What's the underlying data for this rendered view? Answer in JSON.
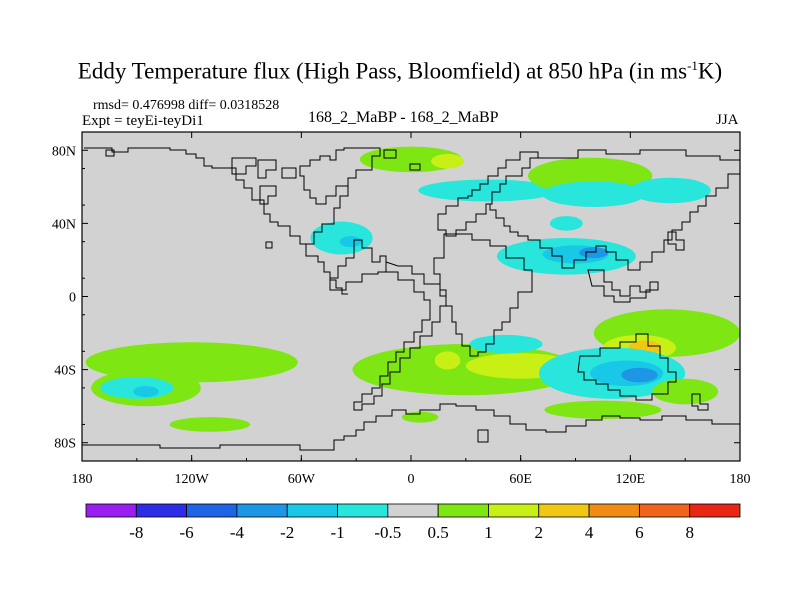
{
  "header": {
    "title_main": "Eddy Temperature flux (High Pass, Bloomfield) at 850 hPa (in ms",
    "title_sup": "-1",
    "title_tail": "K)",
    "stats": "rmsd= 0.476998 diff= 0.0318528",
    "expt": "Expt = teyEi-teyDi1",
    "center_label": "168_2_MaBP - 168_2_MaBP",
    "season": "JJA"
  },
  "chart_data": {
    "type": "contour-map",
    "title": "Eddy Temperature flux (High Pass, Bloomfield) at 850 hPa (in ms-1K)",
    "x_axis": {
      "range": [
        -180,
        180
      ],
      "ticks": [
        -180,
        -120,
        -60,
        0,
        60,
        120,
        180
      ],
      "tick_labels": [
        "180",
        "120W",
        "60W",
        "0",
        "60E",
        "120E",
        "180"
      ]
    },
    "y_axis": {
      "range": [
        -90,
        90
      ],
      "ticks": [
        80,
        40,
        0,
        -40,
        -80
      ],
      "tick_labels": [
        "80N",
        "40N",
        "0",
        "40S",
        "80S"
      ]
    },
    "colorbar": {
      "labels": [
        "-8",
        "-6",
        "-4",
        "-2",
        "-1",
        "-0.5",
        "0.5",
        "1",
        "2",
        "4",
        "6",
        "8"
      ],
      "colors": [
        "#9b1ef0",
        "#2d2de6",
        "#1e64e6",
        "#1e96e6",
        "#19c8e6",
        "#28e6dc",
        "#d2d2d2",
        "#7ee612",
        "#c8f014",
        "#f0c814",
        "#f08c14",
        "#f0641e",
        "#e62814"
      ]
    },
    "regions": [
      {
        "lon": 0,
        "lat": 75,
        "rlon": 28,
        "rlat": 7,
        "color": "#7ee612"
      },
      {
        "lon": 20,
        "lat": 74,
        "rlon": 9,
        "rlat": 4,
        "color": "#c8f014"
      },
      {
        "lon": 42,
        "lat": 58,
        "rlon": 38,
        "rlat": 6,
        "color": "#28e6dc"
      },
      {
        "lon": 98,
        "lat": 66,
        "rlon": 34,
        "rlat": 10,
        "color": "#7ee612"
      },
      {
        "lon": 100,
        "lat": 56,
        "rlon": 28,
        "rlat": 7,
        "color": "#28e6dc"
      },
      {
        "lon": 142,
        "lat": 58,
        "rlon": 22,
        "rlat": 7,
        "color": "#28e6dc"
      },
      {
        "lon": 85,
        "lat": 40,
        "rlon": 9,
        "rlat": 4,
        "color": "#28e6dc"
      },
      {
        "lon": -38,
        "lat": 32,
        "rlon": 17,
        "rlat": 9,
        "color": "#28e6dc"
      },
      {
        "lon": -33,
        "lat": 30,
        "rlon": 6,
        "rlat": 3,
        "color": "#19c8e6"
      },
      {
        "lon": 85,
        "lat": 22,
        "rlon": 38,
        "rlat": 10,
        "color": "#28e6dc"
      },
      {
        "lon": 90,
        "lat": 23,
        "rlon": 18,
        "rlat": 5,
        "color": "#19c8e6"
      },
      {
        "lon": 100,
        "lat": 24,
        "rlon": 8,
        "rlat": 3,
        "color": "#1e96e6"
      },
      {
        "lon": 140,
        "lat": -20,
        "rlon": 40,
        "rlat": 13,
        "color": "#7ee612"
      },
      {
        "lon": 125,
        "lat": -28,
        "rlon": 20,
        "rlat": 7,
        "color": "#c8f014"
      },
      {
        "lon": 128,
        "lat": -28,
        "rlon": 9,
        "rlat": 4,
        "color": "#f0c814"
      },
      {
        "lon": -120,
        "lat": -36,
        "rlon": 58,
        "rlat": 11,
        "color": "#7ee612"
      },
      {
        "lon": -145,
        "lat": -50,
        "rlon": 30,
        "rlat": 10,
        "color": "#7ee612"
      },
      {
        "lon": -150,
        "lat": -50,
        "rlon": 20,
        "rlat": 6,
        "color": "#28e6dc"
      },
      {
        "lon": -145,
        "lat": -52,
        "rlon": 7,
        "rlat": 3,
        "color": "#19c8e6"
      },
      {
        "lon": 30,
        "lat": -40,
        "rlon": 62,
        "rlat": 14,
        "color": "#7ee612"
      },
      {
        "lon": 60,
        "lat": -38,
        "rlon": 30,
        "rlat": 7,
        "color": "#c8f014"
      },
      {
        "lon": 20,
        "lat": -35,
        "rlon": 7,
        "rlat": 5,
        "color": "#c8f014"
      },
      {
        "lon": 52,
        "lat": -26,
        "rlon": 20,
        "rlat": 5,
        "color": "#28e6dc"
      },
      {
        "lon": 110,
        "lat": -42,
        "rlon": 40,
        "rlat": 14,
        "color": "#28e6dc"
      },
      {
        "lon": 118,
        "lat": -42,
        "rlon": 20,
        "rlat": 7,
        "color": "#19c8e6"
      },
      {
        "lon": 125,
        "lat": -43,
        "rlon": 10,
        "rlat": 4,
        "color": "#1e96e6"
      },
      {
        "lon": 150,
        "lat": -52,
        "rlon": 18,
        "rlat": 7,
        "color": "#7ee612"
      },
      {
        "lon": -110,
        "lat": -70,
        "rlon": 22,
        "rlat": 4,
        "color": "#7ee612"
      },
      {
        "lon": 5,
        "lat": -66,
        "rlon": 10,
        "rlat": 3,
        "color": "#7ee612"
      },
      {
        "lon": 105,
        "lat": -62,
        "rlon": 32,
        "rlat": 5,
        "color": "#7ee612"
      }
    ]
  }
}
